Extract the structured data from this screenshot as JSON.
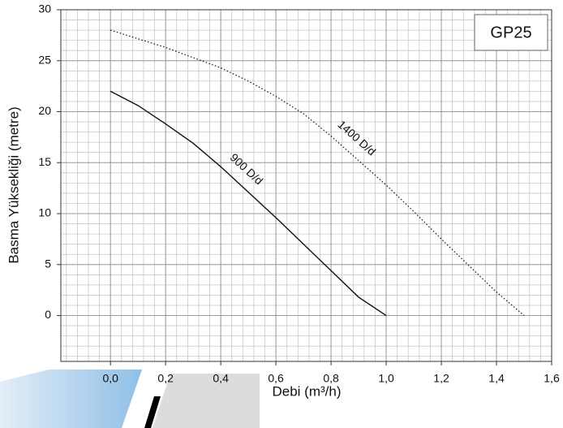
{
  "chart_data": {
    "type": "line",
    "title": "GP25",
    "x_label": "Debi (m³/h)",
    "y_label": "Basma Yüksekliği (metre)",
    "xlim": [
      -0.18,
      1.6
    ],
    "ylim": [
      -4.5,
      30
    ],
    "xticks": [
      {
        "value": 0,
        "label": "0,0"
      },
      {
        "value": 0.2,
        "label": "0,2"
      },
      {
        "value": 0.4,
        "label": "0,4"
      },
      {
        "value": 0.6,
        "label": "0,6"
      },
      {
        "value": 0.8,
        "label": "0,8"
      },
      {
        "value": 1.0,
        "label": "1,0"
      },
      {
        "value": 1.2,
        "label": "1,2"
      },
      {
        "value": 1.4,
        "label": "1,4"
      },
      {
        "value": 1.6,
        "label": "1,6"
      }
    ],
    "yticks": [
      0,
      5,
      10,
      15,
      20,
      25,
      30
    ],
    "grid": true,
    "series": [
      {
        "name": "900 D/d",
        "color": "#111111",
        "dash": "solid",
        "x": [
          0,
          0.1,
          0.2,
          0.3,
          0.4,
          0.5,
          0.6,
          0.7,
          0.8,
          0.9,
          1.0
        ],
        "values": [
          22,
          20.6,
          18.8,
          16.9,
          14.6,
          12.1,
          9.6,
          7,
          4.4,
          1.8,
          0
        ]
      },
      {
        "name": "1400 D/d",
        "color": "#111111",
        "dash": "dotted",
        "x": [
          0,
          0.2,
          0.4,
          0.5,
          0.6,
          0.7,
          0.8,
          0.9,
          1.0,
          1.1,
          1.2,
          1.3,
          1.4,
          1.5
        ],
        "values": [
          28,
          26.3,
          24.3,
          23,
          21.5,
          19.8,
          17.6,
          15.2,
          12.8,
          10.2,
          7.5,
          4.9,
          2.3,
          0
        ]
      }
    ]
  }
}
